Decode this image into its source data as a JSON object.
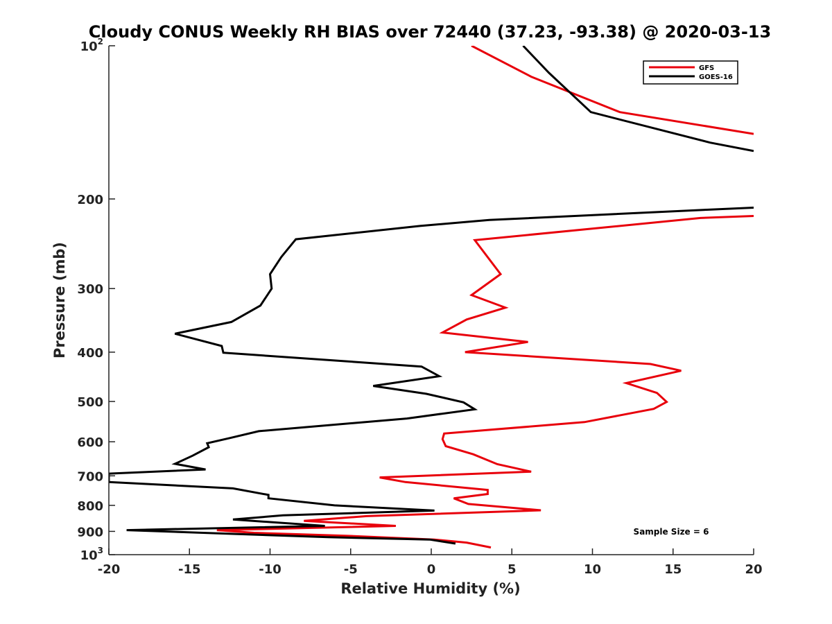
{
  "chart_data": {
    "type": "line",
    "title": "Cloudy CONUS Weekly RH BIAS over 72440 (37.23, -93.38) @ 2020-03-13",
    "xlabel": "Relative Humidity (%)",
    "ylabel": "Pressure (mb)",
    "xlim": [
      -20,
      20
    ],
    "ylim": [
      100,
      1000
    ],
    "yscale": "log",
    "y_reversed": true,
    "grid": false,
    "legend_position": "top-right",
    "annotation": "Sample Size = 6",
    "x_ticks": [
      "-20",
      "-15",
      "-10",
      "-5",
      "0",
      "5",
      "10",
      "15",
      "20"
    ],
    "y_ticks": [
      {
        "value": 100,
        "base": "10",
        "exp": "2"
      },
      {
        "value": 200,
        "label": "200"
      },
      {
        "value": 300,
        "label": "300"
      },
      {
        "value": 400,
        "label": "400"
      },
      {
        "value": 500,
        "label": "500"
      },
      {
        "value": 600,
        "label": "600"
      },
      {
        "value": 700,
        "label": "700"
      },
      {
        "value": 800,
        "label": "800"
      },
      {
        "value": 900,
        "label": "900"
      },
      {
        "value": 1000,
        "base": "10",
        "exp": "3"
      }
    ],
    "series": [
      {
        "name": "GFS",
        "color": "#e8000b",
        "points": [
          [
            2.5,
            100
          ],
          [
            6.2,
            115
          ],
          [
            11.7,
            135
          ],
          [
            20,
            149
          ],
          [
            20,
            216
          ],
          [
            16.7,
            218
          ],
          [
            2.7,
            241
          ],
          [
            4.3,
            281
          ],
          [
            2.5,
            309
          ],
          [
            4.6,
            327
          ],
          [
            2.2,
            345
          ],
          [
            0.7,
            366
          ],
          [
            6.0,
            382
          ],
          [
            2.1,
            400
          ],
          [
            13.6,
            422
          ],
          [
            15.5,
            435
          ],
          [
            12.1,
            460
          ],
          [
            14.0,
            481
          ],
          [
            14.6,
            501
          ],
          [
            13.8,
            517
          ],
          [
            9.5,
            549
          ],
          [
            0.8,
            578
          ],
          [
            0.7,
            593
          ],
          [
            0.9,
            612
          ],
          [
            2.6,
            635
          ],
          [
            4.1,
            664
          ],
          [
            6.2,
            687
          ],
          [
            -3.2,
            705
          ],
          [
            -1.6,
            720
          ],
          [
            3.5,
            746
          ],
          [
            3.5,
            760
          ],
          [
            1.4,
            775
          ],
          [
            2.3,
            795
          ],
          [
            6.8,
            818
          ],
          [
            -4.0,
            840
          ],
          [
            -7.9,
            858
          ],
          [
            -2.2,
            878
          ],
          [
            -13.3,
            895
          ],
          [
            -11.0,
            906
          ],
          [
            -5.3,
            918
          ],
          [
            0.2,
            934
          ],
          [
            2.2,
            947
          ],
          [
            3.7,
            968
          ]
        ]
      },
      {
        "name": "GOES-16",
        "color": "#000000",
        "points": [
          [
            5.7,
            100
          ],
          [
            7.3,
            113
          ],
          [
            9.9,
            135
          ],
          [
            17.3,
            155
          ],
          [
            20,
            161
          ],
          [
            20,
            208
          ],
          [
            17.1,
            210
          ],
          [
            3.6,
            220
          ],
          [
            -0.7,
            226
          ],
          [
            -8.4,
            240
          ],
          [
            -9.3,
            260
          ],
          [
            -10.0,
            281
          ],
          [
            -9.9,
            300
          ],
          [
            -10.6,
            324
          ],
          [
            -12.4,
            349
          ],
          [
            -15.9,
            368
          ],
          [
            -13.0,
            389
          ],
          [
            -12.9,
            401
          ],
          [
            -0.6,
            427
          ],
          [
            0.5,
            446
          ],
          [
            -3.6,
            466
          ],
          [
            -0.3,
            483
          ],
          [
            2.0,
            502
          ],
          [
            2.7,
            518
          ],
          [
            -1.5,
            540
          ],
          [
            -10.7,
            572
          ],
          [
            -12.5,
            590
          ],
          [
            -13.9,
            604
          ],
          [
            -13.8,
            615
          ],
          [
            -14.8,
            639
          ],
          [
            -15.9,
            663
          ],
          [
            -14.0,
            680
          ],
          [
            -20,
            693
          ],
          [
            -20,
            720
          ],
          [
            -12.3,
            741
          ],
          [
            -10.1,
            763
          ],
          [
            -10.1,
            775
          ],
          [
            -6.0,
            800
          ],
          [
            0.2,
            819
          ],
          [
            -9.2,
            837
          ],
          [
            -12.3,
            853
          ],
          [
            -6.6,
            878
          ],
          [
            -18.9,
            895
          ],
          [
            -6.4,
            924
          ],
          [
            -0.1,
            934
          ],
          [
            1.5,
            951
          ]
        ]
      }
    ]
  }
}
